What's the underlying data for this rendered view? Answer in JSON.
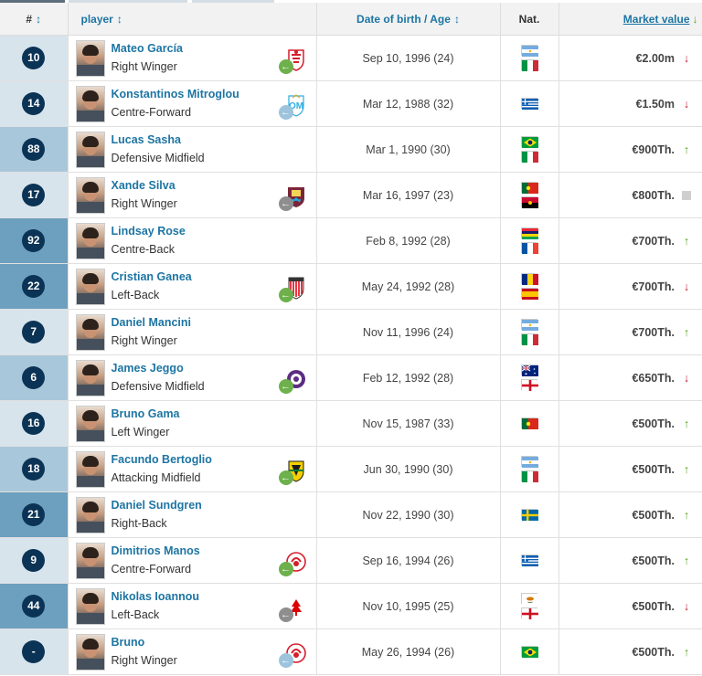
{
  "header": {
    "num": "#",
    "player": "player",
    "dob": "Date of birth / Age",
    "nat": "Nat.",
    "market_value": "Market value"
  },
  "colors": {
    "badge": "#0b3355",
    "link": "#1d75a3",
    "up": "#5ea320",
    "down": "#c0182f"
  },
  "rows": [
    {
      "num": "10",
      "name": "Mateo García",
      "pos": "Right Winger",
      "dob": "Sep 10, 1996 (24)",
      "flags": [
        "argentina",
        "italy"
      ],
      "value": "€2.00m",
      "trend": "down",
      "club": "red-crest",
      "loan": "green",
      "numBg": "#d8e4ec"
    },
    {
      "num": "14",
      "name": "Konstantinos Mitroglou",
      "pos": "Centre-Forward",
      "dob": "Mar 12, 1988 (32)",
      "flags": [
        "greece"
      ],
      "value": "€1.50m",
      "trend": "down",
      "club": "om-crest",
      "loan": "lightblue",
      "numBg": "#d8e4ec"
    },
    {
      "num": "88",
      "name": "Lucas Sasha",
      "pos": "Defensive Midfield",
      "dob": "Mar 1, 1990 (30)",
      "flags": [
        "brazil",
        "italy"
      ],
      "value": "€900Th.",
      "trend": "up",
      "club": "",
      "loan": "",
      "numBg": "#a9c7da"
    },
    {
      "num": "17",
      "name": "Xande Silva",
      "pos": "Right Winger",
      "dob": "Mar 16, 1997 (23)",
      "flags": [
        "portugal",
        "angola"
      ],
      "value": "€800Th.",
      "trend": "same",
      "club": "west-ham-crest",
      "loan": "grey",
      "numBg": "#d8e4ec"
    },
    {
      "num": "92",
      "name": "Lindsay Rose",
      "pos": "Centre-Back",
      "dob": "Feb 8, 1992 (28)",
      "flags": [
        "mauritius",
        "france"
      ],
      "value": "€700Th.",
      "trend": "up",
      "club": "",
      "loan": "",
      "numBg": "#6d9fbe"
    },
    {
      "num": "22",
      "name": "Cristian Ganea",
      "pos": "Left-Back",
      "dob": "May 24, 1992 (28)",
      "flags": [
        "romania",
        "spain"
      ],
      "value": "€700Th.",
      "trend": "down",
      "club": "bilbao-crest",
      "loan": "green",
      "numBg": "#6d9fbe"
    },
    {
      "num": "7",
      "name": "Daniel Mancini",
      "pos": "Right Winger",
      "dob": "Nov 11, 1996 (24)",
      "flags": [
        "argentina",
        "italy"
      ],
      "value": "€700Th.",
      "trend": "up",
      "club": "",
      "loan": "",
      "numBg": "#d8e4ec"
    },
    {
      "num": "6",
      "name": "James Jeggo",
      "pos": "Defensive Midfield",
      "dob": "Feb 12, 1992 (28)",
      "flags": [
        "australia",
        "england"
      ],
      "value": "€650Th.",
      "trend": "down",
      "club": "austria-crest",
      "loan": "green",
      "numBg": "#a9c7da"
    },
    {
      "num": "16",
      "name": "Bruno Gama",
      "pos": "Left Winger",
      "dob": "Nov 15, 1987 (33)",
      "flags": [
        "portugal"
      ],
      "value": "€500Th.",
      "trend": "up",
      "club": "",
      "loan": "",
      "numBg": "#d8e4ec"
    },
    {
      "num": "18",
      "name": "Facundo Bertoglio",
      "pos": "Attacking Midfield",
      "dob": "Jun 30, 1990 (30)",
      "flags": [
        "argentina",
        "italy"
      ],
      "value": "€500Th.",
      "trend": "up",
      "club": "aris-crest",
      "loan": "green",
      "numBg": "#a9c7da"
    },
    {
      "num": "21",
      "name": "Daniel Sundgren",
      "pos": "Right-Back",
      "dob": "Nov 22, 1990 (30)",
      "flags": [
        "sweden"
      ],
      "value": "€500Th.",
      "trend": "up",
      "club": "",
      "loan": "",
      "numBg": "#6d9fbe"
    },
    {
      "num": "9",
      "name": "Dimitrios Manos",
      "pos": "Centre-Forward",
      "dob": "Sep 16, 1994 (26)",
      "flags": [
        "greece"
      ],
      "value": "€500Th.",
      "trend": "up",
      "club": "olympiacos-crest",
      "loan": "green",
      "numBg": "#d8e4ec"
    },
    {
      "num": "44",
      "name": "Nikolas Ioannou",
      "pos": "Left-Back",
      "dob": "Nov 10, 1995 (25)",
      "flags": [
        "cyprus",
        "england"
      ],
      "value": "€500Th.",
      "trend": "down",
      "club": "forest-crest",
      "loan": "grey",
      "numBg": "#6d9fbe"
    },
    {
      "num": "-",
      "name": "Bruno",
      "pos": "Right Winger",
      "dob": "May 26, 1994 (26)",
      "flags": [
        "brazil"
      ],
      "value": "€500Th.",
      "trend": "up",
      "club": "olympiacos-crest",
      "loan": "lightblue",
      "numBg": "#d8e4ec"
    }
  ]
}
